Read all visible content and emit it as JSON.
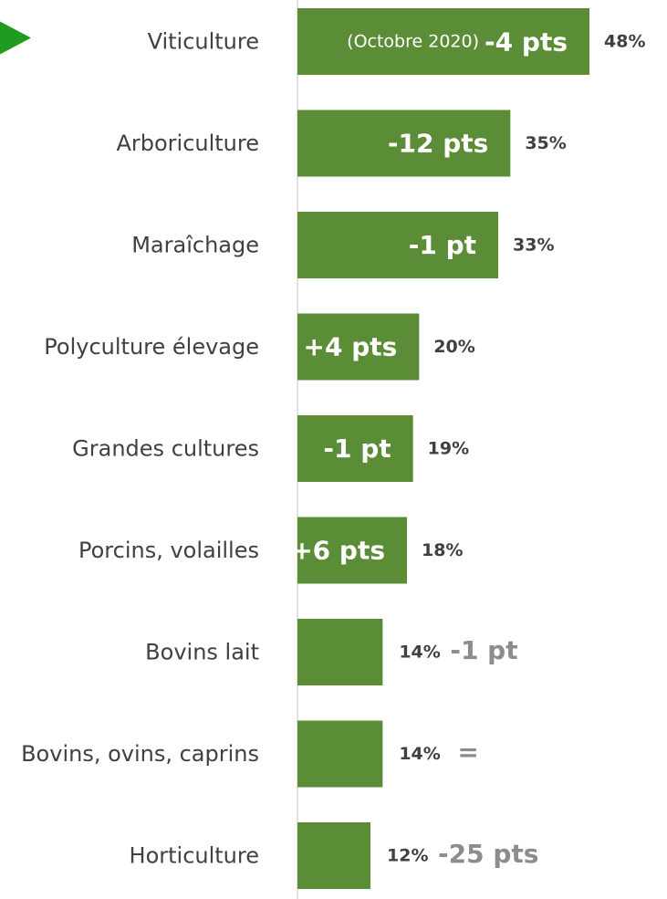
{
  "colors": {
    "bar": "#5b8c36",
    "axis": "#d9d9d9",
    "marker": "#1f9b1f",
    "category_text": "#404040",
    "value_text": "#404040",
    "delta_inside_text": "#ffffff",
    "delta_outside_text": "#8c8c8c"
  },
  "chart_data": {
    "type": "bar",
    "orientation": "horizontal",
    "title": "",
    "xlabel": "",
    "ylabel": "",
    "xlim": [
      0,
      50
    ],
    "grid": false,
    "highlighted_category": "Viticulture",
    "highlight_marker": "triangle-arrow",
    "categories": [
      "Viticulture",
      "Arboriculture",
      "Maraîchage",
      "Polyculture élevage",
      "Grandes cultures",
      "Porcins, volailles",
      "Bovins lait",
      "Bovins, ovins, caprins",
      "Horticulture"
    ],
    "values": [
      48,
      35,
      33,
      20,
      19,
      18,
      14,
      14,
      12
    ],
    "value_labels": [
      "48%",
      "35%",
      "33%",
      "20%",
      "19%",
      "18%",
      "14%",
      "14%",
      "12%"
    ],
    "change_labels": [
      "-4 pts",
      "-12 pts",
      "-1 pt",
      "+4 pts",
      "-1 pt",
      "+6 pts",
      "-1 pt",
      "=",
      "-25 pts"
    ],
    "change_notes": [
      "(Octobre 2020)",
      "",
      "",
      "",
      "",
      "",
      "",
      "",
      ""
    ],
    "change_inside_bar": [
      true,
      true,
      true,
      true,
      true,
      true,
      false,
      false,
      false
    ]
  }
}
